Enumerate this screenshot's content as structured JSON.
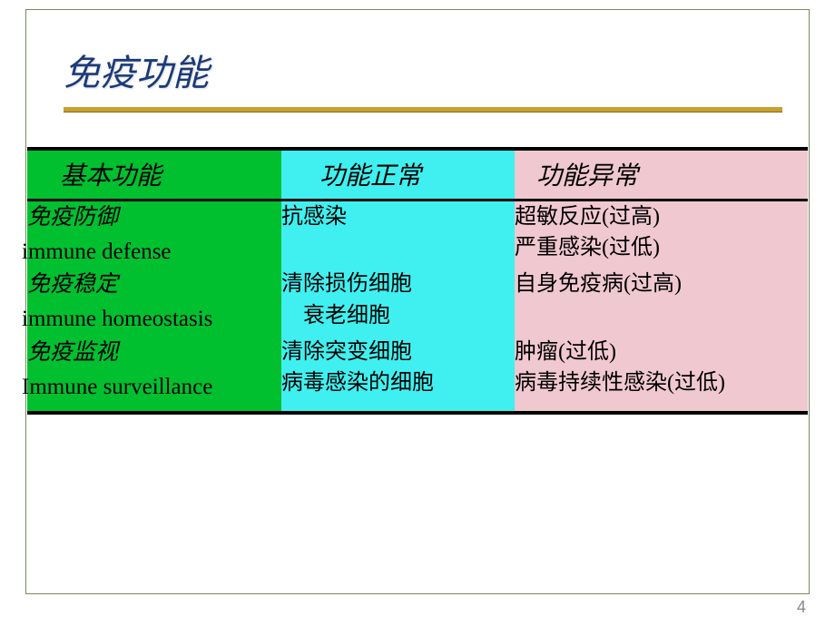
{
  "title": "免疫功能",
  "page_number": "4",
  "colors": {
    "col0_bg": "#00c030",
    "col1_bg": "#40f0f0",
    "col2_bg": "#f0c8d0",
    "title_color": "#1a3a7a",
    "underline_color": "#c8a030",
    "border_color": "#7a8a5a"
  },
  "headers": [
    "基本功能",
    "功能正常",
    "功能异常"
  ],
  "rows": [
    {
      "cn": "免疫防御",
      "en": "immune defense",
      "normal": [
        "抗感染"
      ],
      "abnormal": [
        "超敏反应(过高)",
        "严重感染(过低)"
      ]
    },
    {
      "cn": "免疫稳定",
      "en": "immune homeostasis",
      "normal": [
        "清除损伤细胞",
        " 衰老细胞"
      ],
      "abnormal": [
        "自身免疫病(过高)"
      ]
    },
    {
      "cn": "免疫监视",
      "en": "Immune surveillance",
      "normal": [
        "清除突变细胞",
        "病毒感染的细胞"
      ],
      "abnormal": [
        "肿瘤(过低)",
        "病毒持续性感染(过低)"
      ]
    }
  ]
}
